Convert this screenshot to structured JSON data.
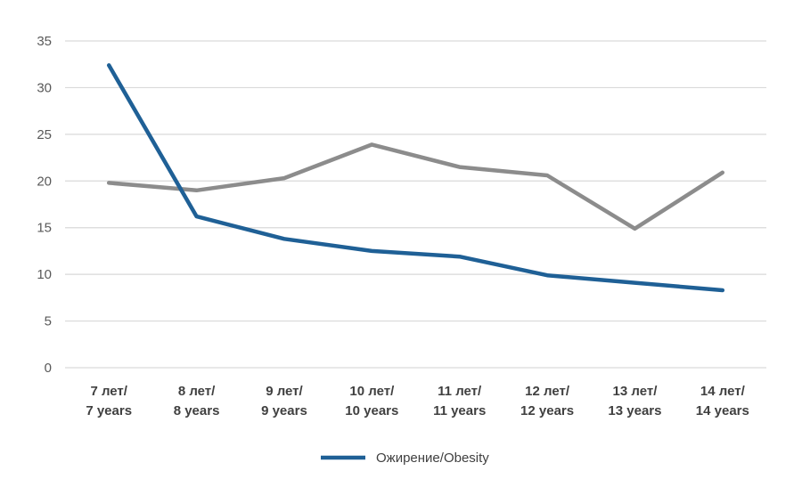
{
  "chart_data": {
    "type": "line",
    "categories": [
      [
        "7 лет/",
        "7 years"
      ],
      [
        "8 лет/",
        "8 years"
      ],
      [
        "9 лет/",
        "9 years"
      ],
      [
        "10 лет/",
        "10 years"
      ],
      [
        "11 лет/",
        "11 years"
      ],
      [
        "12 лет/",
        "12 years"
      ],
      [
        "13 лет/",
        "13 years"
      ],
      [
        "14 лет/",
        "14 years"
      ]
    ],
    "y_ticks": [
      "0",
      "5",
      "10",
      "15",
      "20",
      "25",
      "30",
      "35"
    ],
    "ylim": [
      0,
      35
    ],
    "grid": true,
    "legend_position": "bottom",
    "series": [
      {
        "name": "Ожирение/Obesity",
        "color": "#1F6096",
        "values": [
          32.4,
          16.2,
          13.8,
          12.5,
          11.9,
          9.9,
          9.1,
          8.3
        ],
        "in_legend": true
      },
      {
        "color": "#8C8C8C",
        "values": [
          19.8,
          19.0,
          20.3,
          23.9,
          21.5,
          20.6,
          14.9,
          20.9
        ],
        "in_legend": false
      }
    ]
  }
}
